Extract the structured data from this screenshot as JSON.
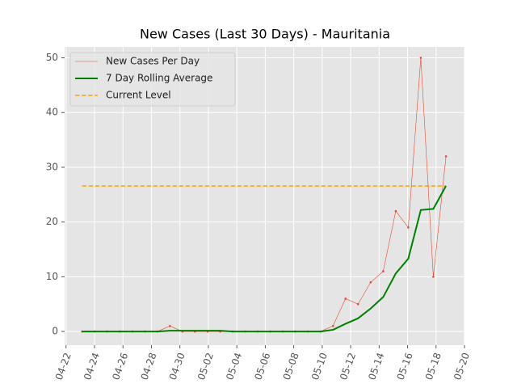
{
  "chart_data": {
    "type": "line",
    "title": "New Cases (Last 30 Days) - Mauritania",
    "x": [
      1.13,
      2.01,
      2.89,
      3.78,
      4.66,
      5.54,
      6.42,
      7.3,
      8.18,
      9.06,
      9.95,
      10.83,
      11.71,
      12.59,
      13.47,
      14.35,
      15.24,
      16.12,
      17.0,
      17.88,
      18.76,
      19.64,
      20.52,
      21.41,
      22.29,
      23.17,
      24.05,
      24.93,
      25.81,
      26.7
    ],
    "series": [
      {
        "name": "New Cases Per Day",
        "color": "#E24A33",
        "width": 0.6,
        "markers": true,
        "values": [
          0,
          0,
          0,
          0,
          0,
          0,
          0,
          1,
          0,
          0,
          0,
          0,
          0,
          0,
          0,
          0,
          0,
          0,
          0,
          0,
          1,
          6,
          5,
          9,
          11,
          22,
          19,
          50,
          10,
          32
        ]
      },
      {
        "name": "7 Day Rolling Average",
        "color": "#008000",
        "width": 2,
        "values": [
          0,
          0,
          0,
          0,
          0,
          0,
          0,
          0.14,
          0.14,
          0.14,
          0.14,
          0.14,
          0,
          0,
          0,
          0,
          0,
          0,
          0,
          0,
          0.3,
          1.4,
          2.4,
          4.2,
          6.3,
          10.6,
          13.3,
          22.2,
          22.4,
          26.6
        ]
      }
    ],
    "hline": {
      "name": "Current Level",
      "color": "#FFA500",
      "value": 26.6
    },
    "xlim": [
      -0.1,
      28
    ],
    "xticks": [
      {
        "value": 0,
        "label": "04-22"
      },
      {
        "value": 2,
        "label": "04-24"
      },
      {
        "value": 4,
        "label": "04-26"
      },
      {
        "value": 6,
        "label": "04-28"
      },
      {
        "value": 8,
        "label": "04-30"
      },
      {
        "value": 10,
        "label": "05-02"
      },
      {
        "value": 12,
        "label": "05-04"
      },
      {
        "value": 14,
        "label": "05-06"
      },
      {
        "value": 16,
        "label": "05-08"
      },
      {
        "value": 18,
        "label": "05-10"
      },
      {
        "value": 20,
        "label": "05-12"
      },
      {
        "value": 22,
        "label": "05-14"
      },
      {
        "value": 24,
        "label": "05-16"
      },
      {
        "value": 26,
        "label": "05-18"
      },
      {
        "value": 28,
        "label": "05-20"
      }
    ],
    "ylim": [
      -2.5,
      52
    ],
    "yticks": [
      0,
      10,
      20,
      30,
      40,
      50
    ],
    "grid": true,
    "legend": "upper-left"
  }
}
